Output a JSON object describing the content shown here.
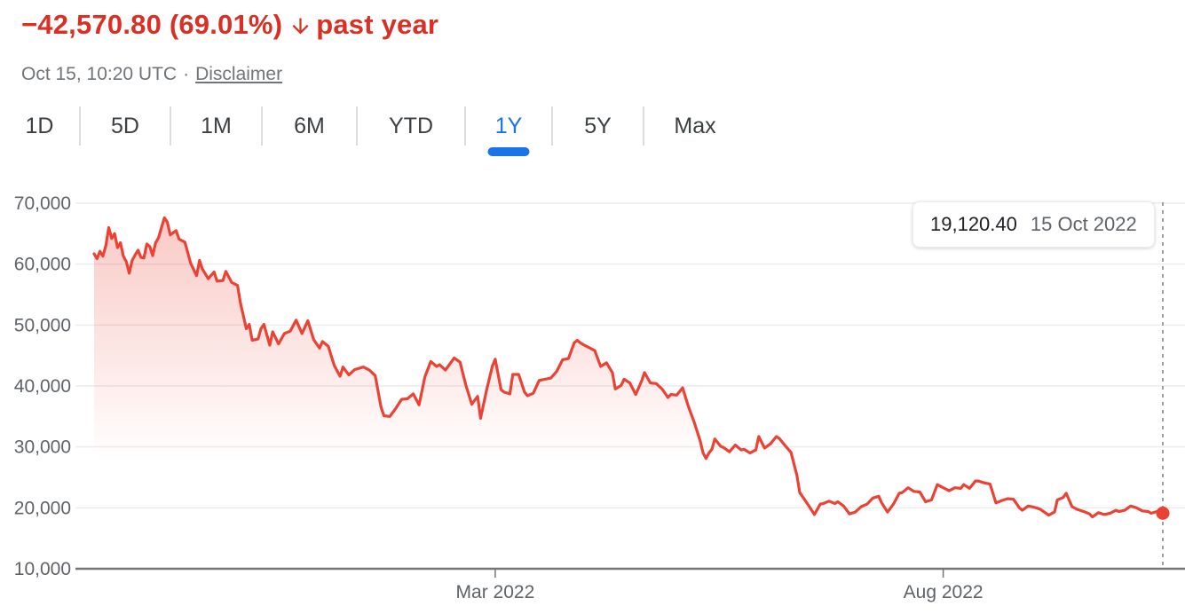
{
  "header": {
    "change_text": "−42,570.80 (69.01%)",
    "arrow_icon": "arrow-downward",
    "period_label": "past year",
    "timestamp": "Oct 15, 10:20 UTC",
    "separator": "·",
    "disclaimer_label": "Disclaimer"
  },
  "range_tabs": {
    "items": [
      {
        "label": "1D",
        "selected": false
      },
      {
        "label": "5D",
        "selected": false
      },
      {
        "label": "1M",
        "selected": false
      },
      {
        "label": "6M",
        "selected": false
      },
      {
        "label": "YTD",
        "selected": false
      },
      {
        "label": "1Y",
        "selected": true
      },
      {
        "label": "5Y",
        "selected": false
      },
      {
        "label": "Max",
        "selected": false
      }
    ]
  },
  "tooltip": {
    "value": "19,120.40",
    "date": "15 Oct 2022"
  },
  "colors": {
    "negative_red": "#d93025",
    "line_red": "#ea4335",
    "accent_blue": "#1a73e8",
    "axis_label_gray": "#5f6368",
    "grid_gray": "#ececec",
    "axis_gray": "#757575",
    "dashed_gray": "#9aa0a6"
  },
  "chart_data": {
    "type": "area",
    "title": "",
    "x_start_date": "15 Oct 2021",
    "x_end_date": "15 Oct 2022",
    "x_range_days": 365,
    "x_ticks": [
      {
        "day": 137,
        "label": "Mar 2022"
      },
      {
        "day": 290,
        "label": "Aug 2022"
      }
    ],
    "y_ticks": [
      {
        "value": 70000,
        "label": "70,000"
      },
      {
        "value": 60000,
        "label": "60,000"
      },
      {
        "value": 50000,
        "label": "50,000"
      },
      {
        "value": 40000,
        "label": "40,000"
      },
      {
        "value": 30000,
        "label": "30,000"
      },
      {
        "value": 20000,
        "label": "20,000"
      },
      {
        "value": 10000,
        "label": "10,000"
      }
    ],
    "ylim": [
      10000,
      70000
    ],
    "grid": true,
    "legend": "none",
    "line_color": "#ea4335",
    "fill_gradient": [
      "rgba(234,67,53,0.30)",
      "rgba(234,67,53,0)"
    ],
    "end_point": {
      "day": 365,
      "value": 19120.4,
      "label": "19,120.40",
      "date": "15 Oct 2022"
    },
    "series": [
      {
        "name": "price",
        "points": [
          [
            0,
            61700
          ],
          [
            1,
            60900
          ],
          [
            2,
            62100
          ],
          [
            3,
            61300
          ],
          [
            4,
            63000
          ],
          [
            5,
            66000
          ],
          [
            6,
            64200
          ],
          [
            7,
            65000
          ],
          [
            8,
            62700
          ],
          [
            9,
            63500
          ],
          [
            10,
            61300
          ],
          [
            11,
            60400
          ],
          [
            12,
            58500
          ],
          [
            13,
            60600
          ],
          [
            14,
            61500
          ],
          [
            15,
            62300
          ],
          [
            16,
            61100
          ],
          [
            17,
            61000
          ],
          [
            18,
            63300
          ],
          [
            19,
            62900
          ],
          [
            20,
            61400
          ],
          [
            21,
            63500
          ],
          [
            22,
            64300
          ],
          [
            23,
            66000
          ],
          [
            24,
            67600
          ],
          [
            25,
            66900
          ],
          [
            26,
            64800
          ],
          [
            28,
            65500
          ],
          [
            29,
            64100
          ],
          [
            31,
            63600
          ],
          [
            33,
            60100
          ],
          [
            35,
            58100
          ],
          [
            36,
            60600
          ],
          [
            37,
            59200
          ],
          [
            39,
            57600
          ],
          [
            41,
            58700
          ],
          [
            42,
            57200
          ],
          [
            44,
            57300
          ],
          [
            45,
            58800
          ],
          [
            47,
            57000
          ],
          [
            49,
            56500
          ],
          [
            50,
            53600
          ],
          [
            52,
            49400
          ],
          [
            53,
            50100
          ],
          [
            54,
            47500
          ],
          [
            56,
            47700
          ],
          [
            57,
            49400
          ],
          [
            58,
            50100
          ],
          [
            60,
            46700
          ],
          [
            61,
            48900
          ],
          [
            63,
            46900
          ],
          [
            65,
            48600
          ],
          [
            67,
            49000
          ],
          [
            69,
            50800
          ],
          [
            71,
            48600
          ],
          [
            73,
            50700
          ],
          [
            75,
            47600
          ],
          [
            77,
            46200
          ],
          [
            78,
            47300
          ],
          [
            80,
            46500
          ],
          [
            82,
            43400
          ],
          [
            84,
            41600
          ],
          [
            85,
            43100
          ],
          [
            87,
            41800
          ],
          [
            89,
            42700
          ],
          [
            92,
            43100
          ],
          [
            94,
            42600
          ],
          [
            96,
            41700
          ],
          [
            98,
            36500
          ],
          [
            99,
            35100
          ],
          [
            101,
            35000
          ],
          [
            103,
            36300
          ],
          [
            105,
            37800
          ],
          [
            107,
            37900
          ],
          [
            109,
            38700
          ],
          [
            111,
            36900
          ],
          [
            113,
            41500
          ],
          [
            115,
            44000
          ],
          [
            117,
            43200
          ],
          [
            118,
            43500
          ],
          [
            120,
            42600
          ],
          [
            123,
            44600
          ],
          [
            125,
            43900
          ],
          [
            127,
            40100
          ],
          [
            129,
            37000
          ],
          [
            131,
            38300
          ],
          [
            132,
            34700
          ],
          [
            134,
            39200
          ],
          [
            136,
            43200
          ],
          [
            137,
            44400
          ],
          [
            139,
            39400
          ],
          [
            140,
            39000
          ],
          [
            142,
            38700
          ],
          [
            143,
            41900
          ],
          [
            145,
            41900
          ],
          [
            147,
            39000
          ],
          [
            148,
            38400
          ],
          [
            150,
            38800
          ],
          [
            152,
            40900
          ],
          [
            154,
            41100
          ],
          [
            156,
            41300
          ],
          [
            158,
            42400
          ],
          [
            160,
            44300
          ],
          [
            162,
            44500
          ],
          [
            164,
            47100
          ],
          [
            165,
            47500
          ],
          [
            166,
            47100
          ],
          [
            167,
            46800
          ],
          [
            169,
            46300
          ],
          [
            171,
            45800
          ],
          [
            173,
            43200
          ],
          [
            175,
            43800
          ],
          [
            177,
            42200
          ],
          [
            178,
            39500
          ],
          [
            180,
            40100
          ],
          [
            181,
            41100
          ],
          [
            183,
            40500
          ],
          [
            185,
            38600
          ],
          [
            187,
            40800
          ],
          [
            188,
            42200
          ],
          [
            190,
            40500
          ],
          [
            192,
            40400
          ],
          [
            194,
            39500
          ],
          [
            196,
            38100
          ],
          [
            197,
            38600
          ],
          [
            199,
            38500
          ],
          [
            201,
            39700
          ],
          [
            203,
            36600
          ],
          [
            205,
            34000
          ],
          [
            207,
            31000
          ],
          [
            208,
            29000
          ],
          [
            209,
            28100
          ],
          [
            210,
            29000
          ],
          [
            211,
            29600
          ],
          [
            212,
            31300
          ],
          [
            214,
            30100
          ],
          [
            215,
            29900
          ],
          [
            217,
            29200
          ],
          [
            219,
            30300
          ],
          [
            221,
            29500
          ],
          [
            222,
            29600
          ],
          [
            224,
            29000
          ],
          [
            226,
            29500
          ],
          [
            227,
            31700
          ],
          [
            229,
            29800
          ],
          [
            231,
            30500
          ],
          [
            233,
            31700
          ],
          [
            234,
            31400
          ],
          [
            236,
            30200
          ],
          [
            238,
            29100
          ],
          [
            240,
            25400
          ],
          [
            241,
            22500
          ],
          [
            243,
            21100
          ],
          [
            244,
            20400
          ],
          [
            246,
            18900
          ],
          [
            248,
            20600
          ],
          [
            249,
            20700
          ],
          [
            251,
            21100
          ],
          [
            253,
            20700
          ],
          [
            254,
            21000
          ],
          [
            256,
            20300
          ],
          [
            258,
            19000
          ],
          [
            260,
            19300
          ],
          [
            262,
            20200
          ],
          [
            264,
            20600
          ],
          [
            266,
            21600
          ],
          [
            268,
            21900
          ],
          [
            269,
            20800
          ],
          [
            271,
            19300
          ],
          [
            273,
            20600
          ],
          [
            275,
            22400
          ],
          [
            276,
            22500
          ],
          [
            278,
            23300
          ],
          [
            280,
            22700
          ],
          [
            282,
            22600
          ],
          [
            284,
            21000
          ],
          [
            286,
            21300
          ],
          [
            288,
            23800
          ],
          [
            290,
            23300
          ],
          [
            292,
            22800
          ],
          [
            294,
            23300
          ],
          [
            296,
            23200
          ],
          [
            297,
            23800
          ],
          [
            299,
            23200
          ],
          [
            301,
            24400
          ],
          [
            302,
            24400
          ],
          [
            304,
            24100
          ],
          [
            306,
            23900
          ],
          [
            308,
            20800
          ],
          [
            310,
            21200
          ],
          [
            312,
            21500
          ],
          [
            314,
            21400
          ],
          [
            316,
            20000
          ],
          [
            317,
            19600
          ],
          [
            319,
            20300
          ],
          [
            321,
            20100
          ],
          [
            323,
            19800
          ],
          [
            326,
            18800
          ],
          [
            328,
            19300
          ],
          [
            329,
            21300
          ],
          [
            331,
            21700
          ],
          [
            332,
            22400
          ],
          [
            334,
            20200
          ],
          [
            336,
            19700
          ],
          [
            338,
            19400
          ],
          [
            340,
            19000
          ],
          [
            341,
            18500
          ],
          [
            343,
            19200
          ],
          [
            345,
            18900
          ],
          [
            347,
            19100
          ],
          [
            349,
            19600
          ],
          [
            350,
            19400
          ],
          [
            352,
            19600
          ],
          [
            354,
            20300
          ],
          [
            356,
            20000
          ],
          [
            358,
            19500
          ],
          [
            360,
            19400
          ],
          [
            361,
            19100
          ],
          [
            363,
            19400
          ],
          [
            365,
            19120.4
          ]
        ]
      }
    ]
  }
}
